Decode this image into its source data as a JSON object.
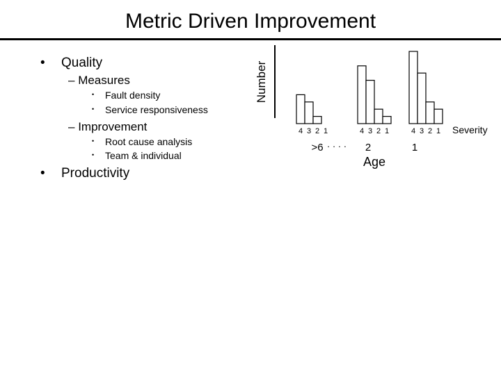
{
  "title": "Metric Driven Improvement",
  "bullets": {
    "quality": "Quality",
    "measures": "Measures",
    "fault_density": "Fault density",
    "service_responsiveness": "Service responsiveness",
    "improvement": "Improvement",
    "root_cause": "Root cause analysis",
    "team_individual": "Team & individual",
    "productivity": "Productivity"
  },
  "chart_data": {
    "type": "bar",
    "ylabel": "Number",
    "xlabel": "Age",
    "severity_label": "Severity",
    "severity_categories": [
      "4",
      "3",
      "2",
      "1"
    ],
    "age_groups": [
      {
        "age": ">6",
        "values": [
          4,
          3,
          1,
          0
        ]
      },
      {
        "age": "2",
        "values": [
          8,
          6,
          2,
          1
        ]
      },
      {
        "age": "1",
        "values": [
          10,
          7,
          3,
          2
        ]
      }
    ],
    "ellipsis": "· · · ·",
    "ylim": [
      0,
      10
    ]
  }
}
